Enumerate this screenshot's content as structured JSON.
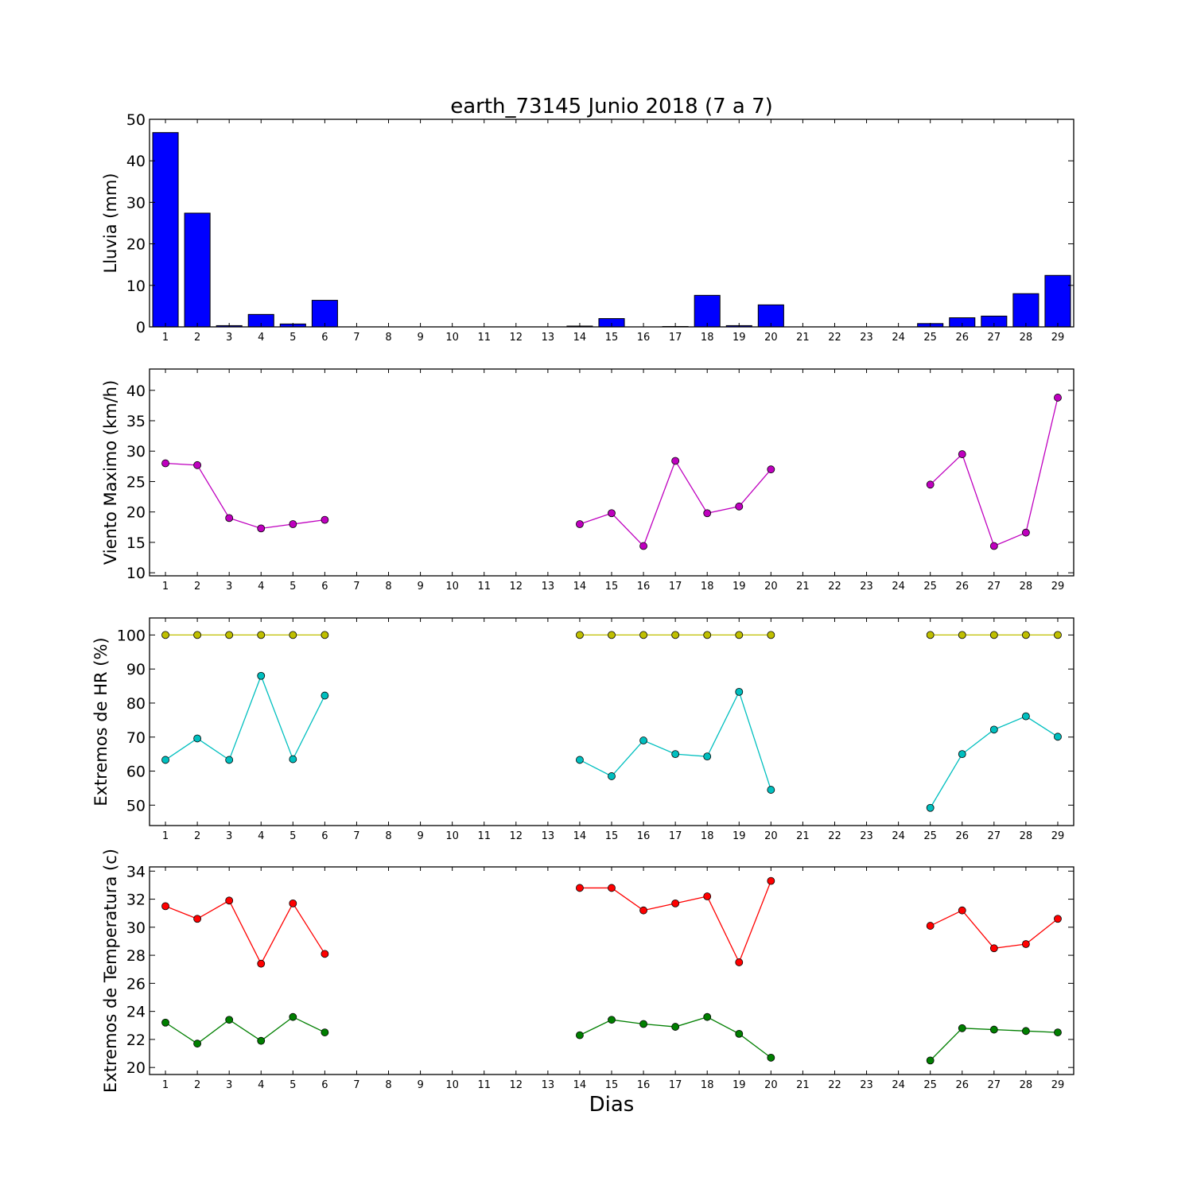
{
  "chart_data": {
    "title": "earth_73145 Junio 2018  (7 a 7)",
    "xlabel": "Dias",
    "categories": [
      "1",
      "2",
      "3",
      "4",
      "5",
      "6",
      "7",
      "8",
      "9",
      "10",
      "11",
      "12",
      "13",
      "14",
      "15",
      "16",
      "17",
      "18",
      "19",
      "20",
      "21",
      "22",
      "23",
      "24",
      "25",
      "26",
      "27",
      "28",
      "29"
    ],
    "panels": [
      {
        "type": "bar",
        "ylabel": "Lluvia (mm)",
        "ylim": [
          0,
          50
        ],
        "yticks": [
          0,
          10,
          20,
          30,
          40,
          50
        ],
        "series": [
          {
            "color": "#0000ff",
            "values": [
              46.8,
              27.4,
              0.3,
              3.0,
              0.7,
              6.4,
              0,
              0,
              0,
              0,
              0,
              0,
              0,
              0.2,
              2.0,
              0,
              0.1,
              7.6,
              0.3,
              5.3,
              0,
              0,
              0,
              0,
              0.8,
              2.2,
              2.6,
              8.0,
              12.4
            ]
          }
        ]
      },
      {
        "type": "line",
        "ylabel": "Viento Maximo (km/h)",
        "ylim": [
          9.5,
          43.5
        ],
        "yticks": [
          10,
          15,
          20,
          25,
          30,
          35,
          40
        ],
        "series": [
          {
            "color": "#bf00bf",
            "values": [
              28.0,
              27.7,
              19.0,
              17.3,
              18.0,
              18.7,
              null,
              null,
              null,
              null,
              null,
              null,
              null,
              18.0,
              19.8,
              14.4,
              28.4,
              19.8,
              20.9,
              27.0,
              null,
              null,
              null,
              null,
              24.5,
              29.5,
              14.4,
              16.6,
              38.8
            ]
          }
        ]
      },
      {
        "type": "line",
        "ylabel": "Extremos de HR (%)",
        "ylim": [
          44,
          105
        ],
        "yticks": [
          50,
          60,
          70,
          80,
          90,
          100
        ],
        "series": [
          {
            "color": "#bfbf00",
            "values": [
              100,
              100,
              100,
              100,
              100,
              100,
              null,
              null,
              null,
              null,
              null,
              null,
              null,
              100,
              100,
              100,
              100,
              100,
              100,
              100,
              null,
              null,
              null,
              null,
              100,
              100,
              100,
              100,
              100
            ]
          },
          {
            "color": "#00bfbf",
            "values": [
              63.3,
              69.6,
              63.3,
              88.0,
              63.5,
              82.2,
              null,
              null,
              null,
              null,
              null,
              null,
              null,
              63.3,
              58.5,
              69.0,
              65.0,
              64.3,
              83.3,
              54.5,
              null,
              null,
              null,
              null,
              49.2,
              65.0,
              72.2,
              76.1,
              70.1
            ]
          }
        ]
      },
      {
        "type": "line",
        "ylabel": "Extremos de Temperatura (c)",
        "ylim": [
          19.5,
          34.3
        ],
        "yticks": [
          20,
          22,
          24,
          26,
          28,
          30,
          32,
          34
        ],
        "series": [
          {
            "color": "#ff0000",
            "values": [
              31.5,
              30.6,
              31.9,
              27.4,
              31.7,
              28.1,
              null,
              null,
              null,
              null,
              null,
              null,
              null,
              32.8,
              32.8,
              31.2,
              31.7,
              32.2,
              27.5,
              33.3,
              null,
              null,
              null,
              null,
              30.1,
              31.2,
              28.5,
              28.8,
              30.6
            ]
          },
          {
            "color": "#007f00",
            "values": [
              23.2,
              21.7,
              23.4,
              21.9,
              23.6,
              22.5,
              null,
              null,
              null,
              null,
              null,
              null,
              null,
              22.3,
              23.4,
              23.1,
              22.9,
              23.6,
              22.4,
              20.7,
              null,
              null,
              null,
              null,
              20.5,
              22.8,
              22.7,
              22.6,
              22.5
            ]
          }
        ]
      }
    ]
  }
}
